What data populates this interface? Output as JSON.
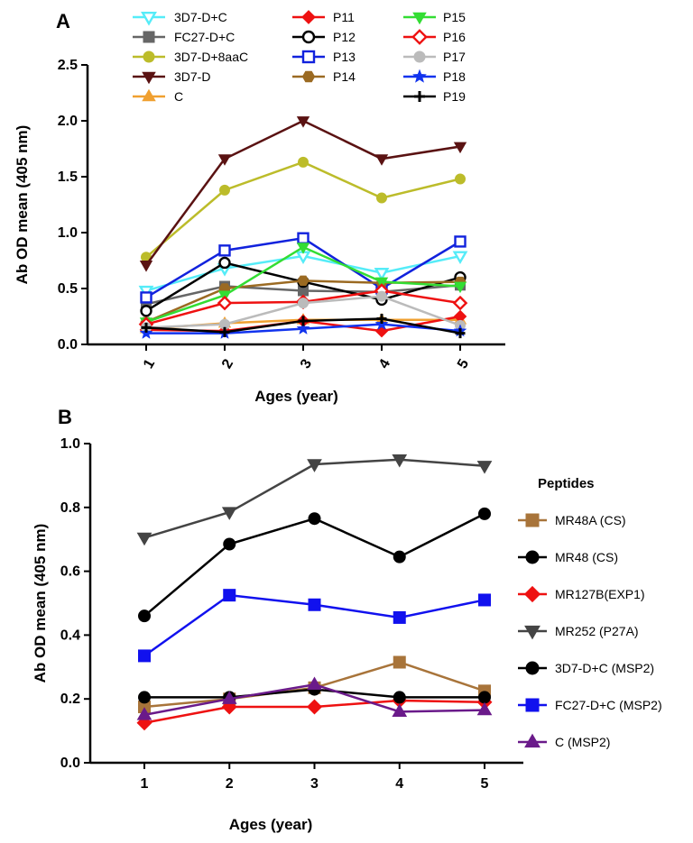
{
  "chart_data": [
    {
      "panel": "A",
      "type": "line",
      "categories": [
        "1",
        "2",
        "3",
        "4",
        "5"
      ],
      "ylabel": "Ab OD mean (405 nm)",
      "xlabel": "Ages (year)",
      "ylim": [
        0,
        2.5
      ],
      "yticks": [
        "0.0",
        "0.5",
        "1.0",
        "1.5",
        "2.0",
        "2.5"
      ],
      "grid": false,
      "legend_position": "top, three columns",
      "series": [
        {
          "name": "3D7-D+C",
          "color": "#55ecf8",
          "marker": "triangle-down-open",
          "values": [
            0.48,
            0.68,
            0.79,
            0.64,
            0.79
          ]
        },
        {
          "name": "FC27-D+C",
          "color": "#666666",
          "marker": "square",
          "values": [
            0.36,
            0.52,
            0.48,
            0.47,
            0.53
          ]
        },
        {
          "name": "3D7-D+8aaC",
          "color": "#bcbc2a",
          "marker": "circle",
          "values": [
            0.78,
            1.38,
            1.63,
            1.31,
            1.48
          ]
        },
        {
          "name": "3D7-D",
          "color": "#5a1212",
          "marker": "triangle-down",
          "values": [
            0.71,
            1.66,
            2.0,
            1.66,
            1.77
          ]
        },
        {
          "name": "C",
          "color": "#f0a030",
          "marker": "triangle-up",
          "values": [
            0.14,
            0.19,
            0.22,
            0.22,
            0.22
          ]
        },
        {
          "name": "P11",
          "color": "#ee1111",
          "marker": "diamond",
          "values": [
            0.13,
            0.12,
            0.21,
            0.12,
            0.25
          ]
        },
        {
          "name": "P12",
          "color": "#000000",
          "marker": "circle-open",
          "values": [
            0.3,
            0.73,
            0.56,
            0.4,
            0.6
          ]
        },
        {
          "name": "P13",
          "color": "#1122dd",
          "marker": "square-open",
          "values": [
            0.42,
            0.84,
            0.95,
            0.5,
            0.92
          ]
        },
        {
          "name": "P14",
          "color": "#9b6a22",
          "marker": "hexagon",
          "values": [
            0.2,
            0.5,
            0.57,
            0.55,
            0.56
          ]
        },
        {
          "name": "P15",
          "color": "#33dd33",
          "marker": "triangle-down",
          "values": [
            0.2,
            0.44,
            0.87,
            0.56,
            0.52
          ]
        },
        {
          "name": "P16",
          "color": "#ee1111",
          "marker": "diamond-open",
          "values": [
            0.18,
            0.37,
            0.38,
            0.48,
            0.37
          ]
        },
        {
          "name": "P17",
          "color": "#bbbbbb",
          "marker": "circle",
          "values": [
            0.15,
            0.18,
            0.37,
            0.43,
            0.17
          ]
        },
        {
          "name": "P18",
          "color": "#1133ee",
          "marker": "star",
          "values": [
            0.1,
            0.1,
            0.14,
            0.18,
            0.12
          ]
        },
        {
          "name": "P19",
          "color": "#000000",
          "marker": "plus",
          "values": [
            0.15,
            0.11,
            0.21,
            0.23,
            0.1
          ]
        }
      ]
    },
    {
      "panel": "B",
      "type": "line",
      "categories": [
        "1",
        "2",
        "3",
        "4",
        "5"
      ],
      "ylabel": "Ab OD mean (405 nm)",
      "xlabel": "Ages (year)",
      "ylim": [
        0,
        1.0
      ],
      "yticks": [
        "0.0",
        "0.2",
        "0.4",
        "0.6",
        "0.8",
        "1.0"
      ],
      "grid": false,
      "legend_title": "Peptides",
      "legend_position": "right",
      "series": [
        {
          "name": "MR48A (CS)",
          "color": "#a8743a",
          "marker": "square",
          "values": [
            0.175,
            0.2,
            0.235,
            0.315,
            0.225
          ]
        },
        {
          "name": "MR48 (CS)",
          "color": "#000000",
          "marker": "circle",
          "values": [
            0.46,
            0.685,
            0.765,
            0.645,
            0.78
          ]
        },
        {
          "name": "MR127B(EXP1)",
          "color": "#ee1111",
          "marker": "diamond",
          "values": [
            0.125,
            0.175,
            0.175,
            0.195,
            0.19
          ]
        },
        {
          "name": "MR252 (P27A)",
          "color": "#444444",
          "marker": "triangle-down",
          "values": [
            0.705,
            0.785,
            0.935,
            0.95,
            0.93
          ]
        },
        {
          "name": "3D7-D+C (MSP2)",
          "color": "#000000",
          "marker": "circle",
          "values": [
            0.205,
            0.205,
            0.23,
            0.205,
            0.205
          ]
        },
        {
          "name": "FC27-D+C (MSP2)",
          "color": "#1111ee",
          "marker": "square",
          "values": [
            0.335,
            0.525,
            0.495,
            0.455,
            0.51
          ]
        },
        {
          "name": "C (MSP2)",
          "color": "#6a1a8a",
          "marker": "triangle-up",
          "values": [
            0.15,
            0.2,
            0.245,
            0.16,
            0.165
          ]
        }
      ]
    }
  ]
}
